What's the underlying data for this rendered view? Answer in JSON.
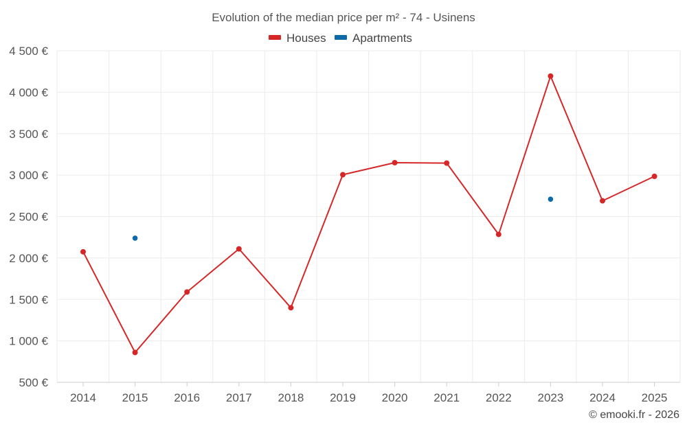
{
  "chart_data": {
    "type": "line",
    "title": "Evolution of the median price per m² - 74 - Usinens",
    "categories": [
      "2014",
      "2015",
      "2016",
      "2017",
      "2018",
      "2019",
      "2020",
      "2021",
      "2022",
      "2023",
      "2024",
      "2025"
    ],
    "series": [
      {
        "name": "Houses",
        "color": "#d62728",
        "values": [
          2075,
          860,
          1590,
          2110,
          1400,
          3005,
          3150,
          3145,
          2285,
          4195,
          2690,
          2985
        ]
      },
      {
        "name": "Apartments",
        "color": "#0d6aa8",
        "values": [
          null,
          2240,
          null,
          null,
          null,
          null,
          null,
          null,
          null,
          2710,
          null,
          null
        ]
      }
    ],
    "y_ticks": [
      500,
      1000,
      1500,
      2000,
      2500,
      3000,
      3500,
      4000,
      4500
    ],
    "y_tick_labels": [
      "500 €",
      "1 000 €",
      "1 500 €",
      "2 000 €",
      "2 500 €",
      "3 000 €",
      "3 500 €",
      "4 000 €",
      "4 500 €"
    ],
    "ylim": [
      500,
      4500
    ],
    "xlabel": "",
    "ylabel": "",
    "legend_position": "top-center",
    "grid": true
  },
  "credit": "© emooki.fr - 2026"
}
